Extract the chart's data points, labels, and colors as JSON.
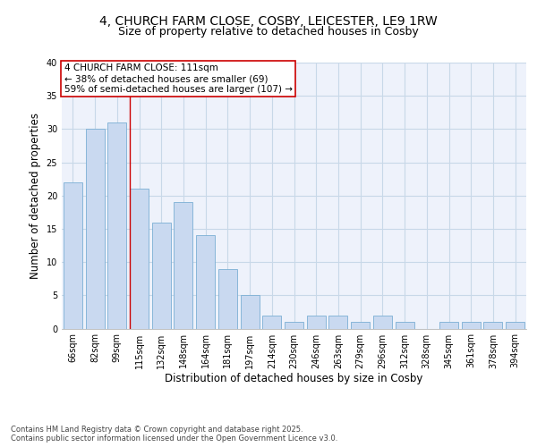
{
  "title_line1": "4, CHURCH FARM CLOSE, COSBY, LEICESTER, LE9 1RW",
  "title_line2": "Size of property relative to detached houses in Cosby",
  "xlabel": "Distribution of detached houses by size in Cosby",
  "ylabel": "Number of detached properties",
  "categories": [
    "66sqm",
    "82sqm",
    "99sqm",
    "115sqm",
    "132sqm",
    "148sqm",
    "164sqm",
    "181sqm",
    "197sqm",
    "214sqm",
    "230sqm",
    "246sqm",
    "263sqm",
    "279sqm",
    "296sqm",
    "312sqm",
    "328sqm",
    "345sqm",
    "361sqm",
    "378sqm",
    "394sqm"
  ],
  "values": [
    22,
    30,
    31,
    21,
    16,
    19,
    14,
    9,
    5,
    2,
    1,
    2,
    2,
    1,
    2,
    1,
    0,
    1,
    1,
    1,
    1
  ],
  "bar_color": "#c9d9f0",
  "bar_edge_color": "#7bafd4",
  "grid_color": "#c8d8e8",
  "background_color": "#eef2fb",
  "red_line_x": 2.575,
  "annotation_text": "4 CHURCH FARM CLOSE: 111sqm\n← 38% of detached houses are smaller (69)\n59% of semi-detached houses are larger (107) →",
  "annotation_box_color": "#ffffff",
  "annotation_box_edge": "#cc0000",
  "red_line_color": "#cc0000",
  "ylim": [
    0,
    40
  ],
  "yticks": [
    0,
    5,
    10,
    15,
    20,
    25,
    30,
    35,
    40
  ],
  "footnote": "Contains HM Land Registry data © Crown copyright and database right 2025.\nContains public sector information licensed under the Open Government Licence v3.0.",
  "title_fontsize": 10,
  "subtitle_fontsize": 9,
  "tick_fontsize": 7,
  "label_fontsize": 8.5,
  "annot_fontsize": 7.5
}
